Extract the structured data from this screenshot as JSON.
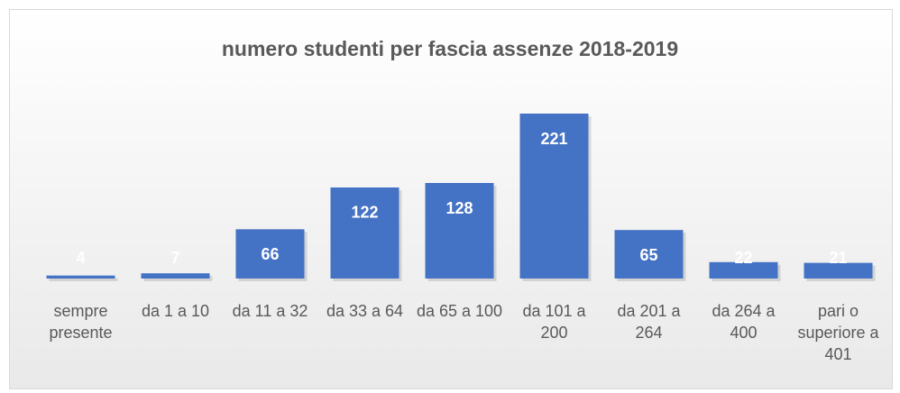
{
  "chart_data": {
    "type": "bar",
    "title": "numero studenti per fascia assenze 2018-2019",
    "categories": [
      "sempre presente",
      "da 1 a 10",
      "da 11 a 32",
      "da 33 a 64",
      "da 65 a 100",
      "da 101 a 200",
      "da 201 a 264",
      "da 264 a 400",
      "pari o superiore a 401"
    ],
    "values": [
      4,
      7,
      66,
      122,
      128,
      221,
      65,
      22,
      21
    ],
    "color": "#4472c4",
    "ylim": [
      0,
      250
    ]
  }
}
